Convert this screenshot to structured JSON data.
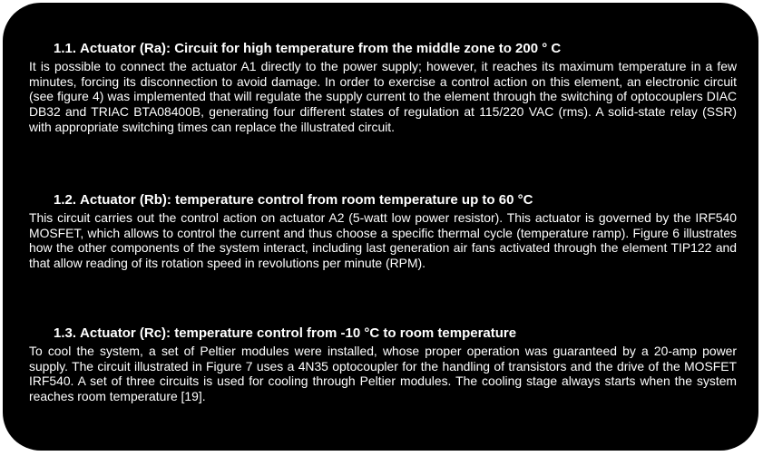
{
  "sections": [
    {
      "number": "1.1.",
      "title": "Actuator (Ra): Circuit for high temperature from the middle zone to 200 ° C",
      "body": "It is possible to connect the actuator A1 directly to the power supply; however, it reaches its maximum temperature in a few minutes, forcing its disconnection to avoid damage. In order to exercise a control action on this element, an electronic circuit (see figure 4) was implemented that will regulate the supply current to the element through the switching of optocouplers DIAC DB32 and TRIAC BTA08400B, generating four different states of regulation at 115/220 VAC (rms). A solid-state relay (SSR) with appropriate switching times can replace the illustrated circuit."
    },
    {
      "number": "1.2.",
      "title": "Actuator (Rb): temperature control from room temperature up to 60 °C",
      "body": "This circuit carries out the control action on actuator A2 (5-watt low power resistor). This actuator is governed by the IRF540 MOSFET, which allows to control the current and thus choose a specific thermal cycle (temperature ramp). Figure 6 illustrates how the other components of the system interact, including last generation air fans activated through the element TIP122 and that allow reading of its rotation speed in revolutions per minute (RPM)."
    },
    {
      "number": "1.3.",
      "title": "Actuator (Rc): temperature control from -10 °C to room temperature",
      "body": "To cool the system, a set of Peltier modules were installed, whose proper operation was guaranteed by a 20-amp power supply. The circuit illustrated in Figure 7 uses a 4N35 optocoupler for the handling of transistors and the drive of the MOSFET IRF540. A set of three circuits is used for cooling through Peltier modules. The cooling stage always starts when the system reaches room temperature [19]."
    }
  ]
}
